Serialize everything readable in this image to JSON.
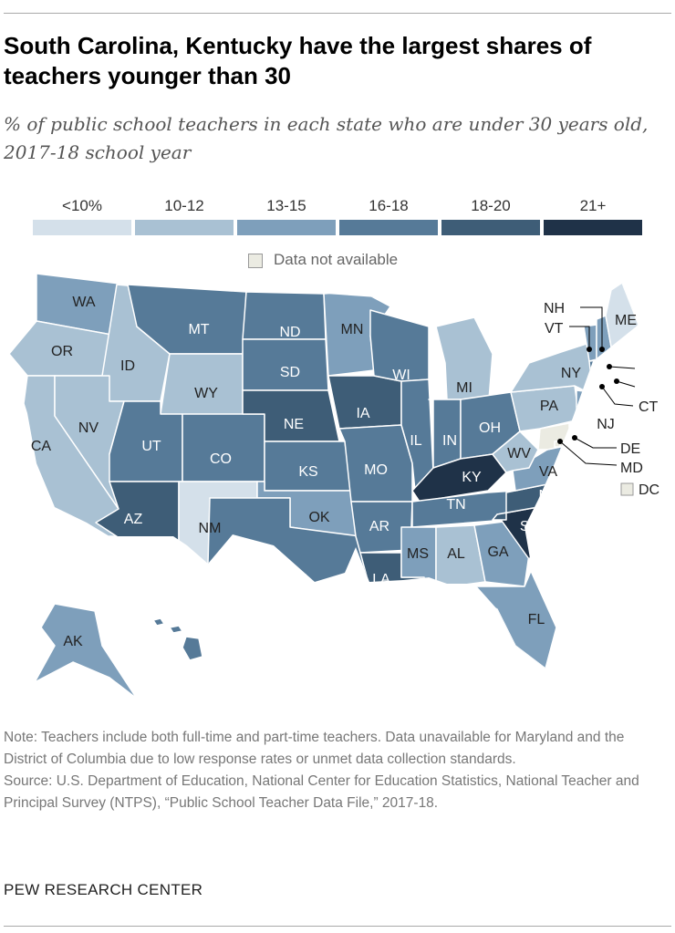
{
  "title": "South Carolina, Kentucky have the largest shares of teachers younger than 30",
  "subtitle": "% of public school teachers in each state who are under 30 years old, 2017-18 school year",
  "legend": [
    {
      "label": "<10%",
      "color": "#d4e0ea"
    },
    {
      "label": "10-12",
      "color": "#a9c1d3"
    },
    {
      "label": "13-15",
      "color": "#7e9fbb"
    },
    {
      "label": "16-18",
      "color": "#567a98"
    },
    {
      "label": "18-20",
      "color": "#3e5d77"
    },
    {
      "label": "21+",
      "color": "#1f3248"
    }
  ],
  "na_label": "Data not available",
  "na_color": "#ebebe2",
  "states": [
    {
      "abbr": "WA",
      "bin": 2
    },
    {
      "abbr": "OR",
      "bin": 1
    },
    {
      "abbr": "CA",
      "bin": 1
    },
    {
      "abbr": "ID",
      "bin": 1
    },
    {
      "abbr": "NV",
      "bin": 1
    },
    {
      "abbr": "MT",
      "bin": 3
    },
    {
      "abbr": "WY",
      "bin": 1
    },
    {
      "abbr": "UT",
      "bin": 3
    },
    {
      "abbr": "AZ",
      "bin": 4
    },
    {
      "abbr": "CO",
      "bin": 3
    },
    {
      "abbr": "NM",
      "bin": 0
    },
    {
      "abbr": "ND",
      "bin": 3
    },
    {
      "abbr": "SD",
      "bin": 3
    },
    {
      "abbr": "NE",
      "bin": 4
    },
    {
      "abbr": "KS",
      "bin": 3
    },
    {
      "abbr": "OK",
      "bin": 2
    },
    {
      "abbr": "TX",
      "bin": 3
    },
    {
      "abbr": "MN",
      "bin": 2
    },
    {
      "abbr": "IA",
      "bin": 4
    },
    {
      "abbr": "MO",
      "bin": 3
    },
    {
      "abbr": "AR",
      "bin": 3
    },
    {
      "abbr": "LA",
      "bin": 4
    },
    {
      "abbr": "WI",
      "bin": 3
    },
    {
      "abbr": "IL",
      "bin": 3
    },
    {
      "abbr": "MI",
      "bin": 1
    },
    {
      "abbr": "IN",
      "bin": 3
    },
    {
      "abbr": "OH",
      "bin": 3
    },
    {
      "abbr": "KY",
      "bin": 5
    },
    {
      "abbr": "TN",
      "bin": 3
    },
    {
      "abbr": "MS",
      "bin": 2
    },
    {
      "abbr": "AL",
      "bin": 1
    },
    {
      "abbr": "GA",
      "bin": 2
    },
    {
      "abbr": "FL",
      "bin": 2
    },
    {
      "abbr": "SC",
      "bin": 5
    },
    {
      "abbr": "NC",
      "bin": 4
    },
    {
      "abbr": "VA",
      "bin": 2
    },
    {
      "abbr": "WV",
      "bin": 1
    },
    {
      "abbr": "PA",
      "bin": 1
    },
    {
      "abbr": "NY",
      "bin": 1
    },
    {
      "abbr": "NJ",
      "bin": 2
    },
    {
      "abbr": "DE",
      "bin": 1
    },
    {
      "abbr": "MD",
      "bin": -1
    },
    {
      "abbr": "DC",
      "bin": -1
    },
    {
      "abbr": "CT",
      "bin": 1
    },
    {
      "abbr": "RI",
      "bin": 3
    },
    {
      "abbr": "MA",
      "bin": 3
    },
    {
      "abbr": "VT",
      "bin": 2
    },
    {
      "abbr": "NH",
      "bin": 2
    },
    {
      "abbr": "ME",
      "bin": 0
    },
    {
      "abbr": "AK",
      "bin": 2
    },
    {
      "abbr": "HI",
      "bin": 3
    }
  ],
  "note": "Note: Teachers include both full-time and part-time teachers. Data unavailable for Maryland and the District of Columbia due to low response rates or unmet data collection standards.",
  "source": "Source: U.S. Department of Education, National Center for Education Statistics, National Teacher and Principal Survey (NTPS), “Public School Teacher Data File,” 2017-18.",
  "brand": "PEW RESEARCH CENTER"
}
